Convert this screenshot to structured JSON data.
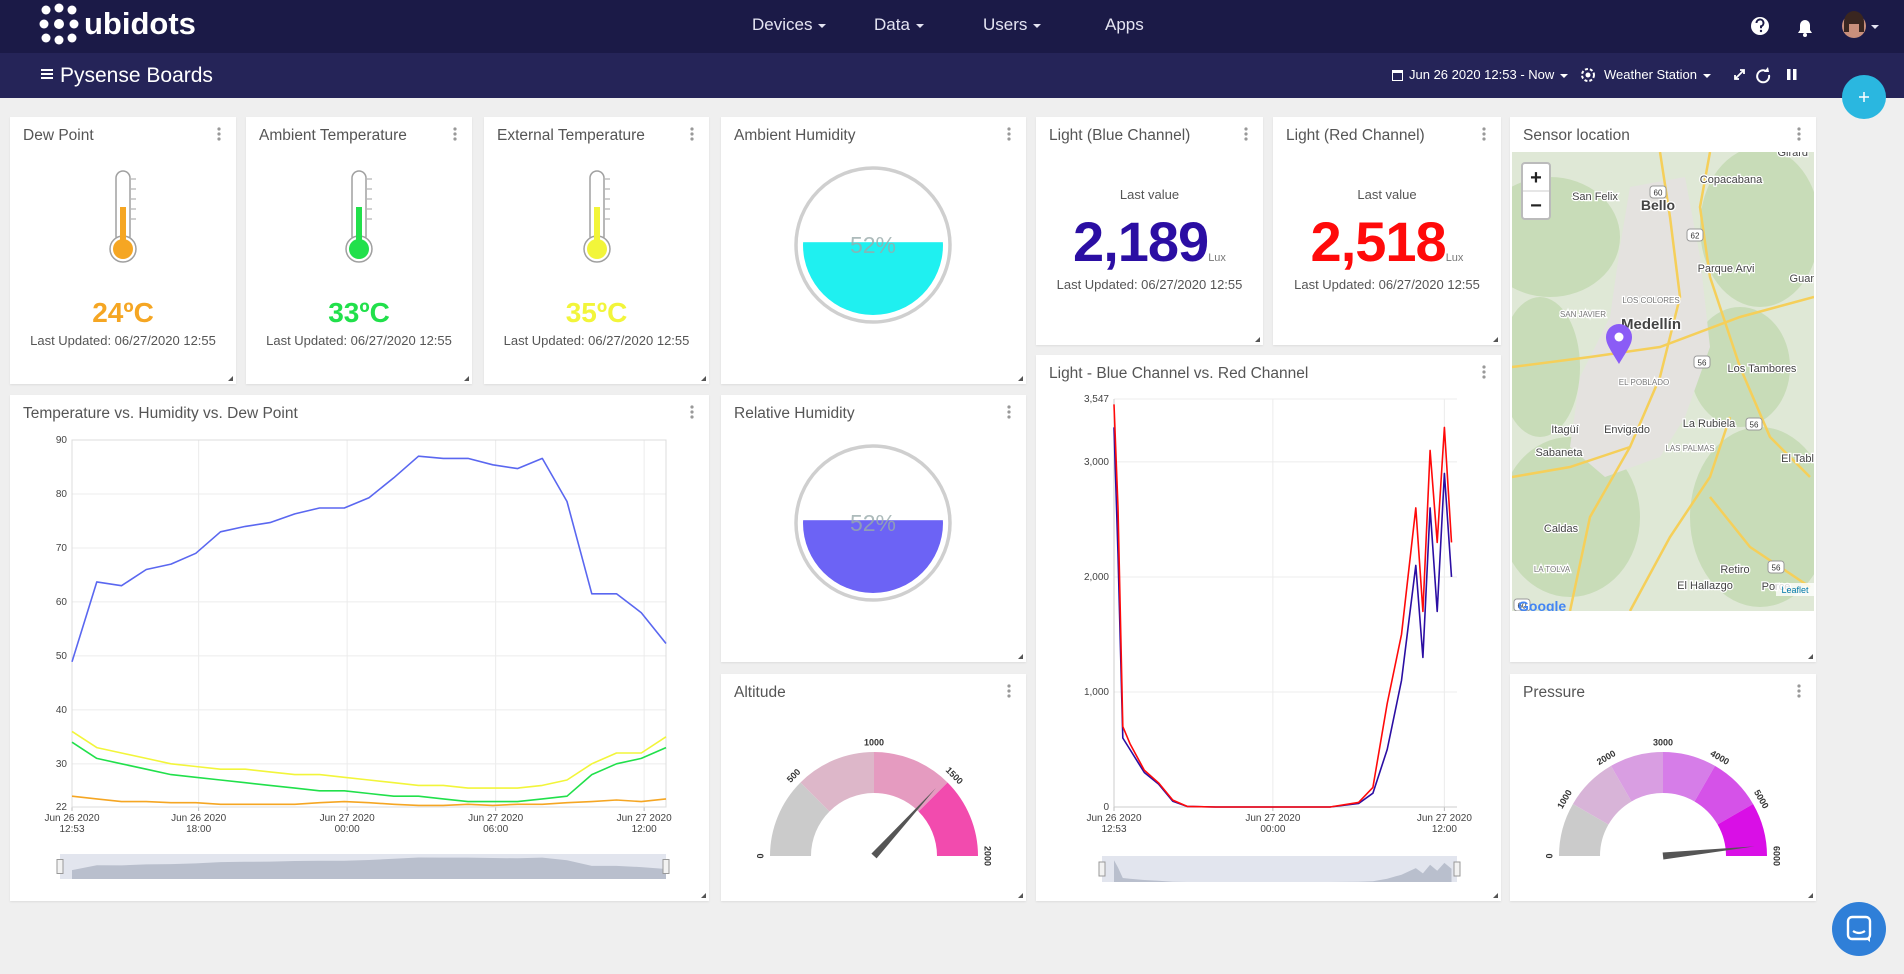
{
  "nav": {
    "brand": "ubidots",
    "menu": [
      "Devices",
      "Data",
      "Users",
      "Apps"
    ]
  },
  "toolbar": {
    "title": "Pysense Boards",
    "date_range": "Jun 26 2020 12:53 - Now",
    "device": "Weather Station"
  },
  "widgets": {
    "dew_point": {
      "title": "Dew Point",
      "value_label": "24ºC",
      "color": "#f5a623",
      "updated": "Last Updated: 06/27/2020 12:55"
    },
    "ambient_temperature": {
      "title": "Ambient Temperature",
      "value_label": "33ºC",
      "color": "#21e04b",
      "updated": "Last Updated: 06/27/2020 12:55"
    },
    "external_temperature": {
      "title": "External Temperature",
      "value_label": "35ºC",
      "color": "#f2f53a",
      "updated": "Last Updated: 06/27/2020 12:55"
    },
    "ambient_humidity": {
      "title": "Ambient Humidity",
      "value": 52,
      "value_label": "52%",
      "color": "#1ff0f0"
    },
    "light_blue": {
      "title": "Light (Blue Channel)",
      "caption": "Last value",
      "value": 2189,
      "value_label": "2,189",
      "unit": "Lux",
      "color": "#2b0ea3",
      "updated": "Last Updated: 06/27/2020 12:55"
    },
    "light_red": {
      "title": "Light (Red Channel)",
      "caption": "Last value",
      "value": 2518,
      "value_label": "2,518",
      "unit": "Lux",
      "color": "#ff0a0a",
      "updated": "Last Updated: 06/27/2020 12:55"
    },
    "sensor_location": {
      "title": "Sensor location",
      "zoom_in": "+",
      "zoom_out": "−",
      "attribution": "Leaflet",
      "logo": "Google",
      "places": [
        "Girard",
        "Copacabana",
        "San Felix",
        "Bello",
        "Parque Arvi",
        "Guar",
        "LOS COLORES",
        "SAN JAVIER",
        "Medellín",
        "EL POBLADO",
        "Los Tambores",
        "Itagüí",
        "Envigado",
        "La Rubiela",
        "Sabaneta",
        "LAS PALMAS",
        "El Tabl",
        "Caldas",
        "LA TOLVA",
        "Retiro",
        "El Hallazgo",
        "Porce"
      ],
      "shields": [
        "60",
        "62",
        "56",
        "56",
        "60",
        "56"
      ]
    },
    "relative_humidity": {
      "title": "Relative Humidity",
      "value": 52,
      "value_label": "52%",
      "color": "#6c63f5"
    }
  },
  "chart_data": [
    {
      "type": "line",
      "title": "Temperature vs. Humidity vs. Dew Point",
      "x": [
        "2020-06-26T12:53",
        "2020-06-26T13:53",
        "2020-06-26T14:53",
        "2020-06-26T15:53",
        "2020-06-26T16:53",
        "2020-06-26T17:53",
        "2020-06-26T18:53",
        "2020-06-26T19:53",
        "2020-06-26T20:53",
        "2020-06-26T21:53",
        "2020-06-26T22:53",
        "2020-06-26T23:53",
        "2020-06-27T00:53",
        "2020-06-27T01:53",
        "2020-06-27T02:53",
        "2020-06-27T03:53",
        "2020-06-27T04:53",
        "2020-06-27T05:53",
        "2020-06-27T06:53",
        "2020-06-27T07:53",
        "2020-06-27T08:53",
        "2020-06-27T09:53",
        "2020-06-27T10:53",
        "2020-06-27T11:53",
        "2020-06-27T12:53"
      ],
      "series": [
        {
          "color": "#5a67f0",
          "values": [
            48.9,
            63.7,
            63,
            66,
            67,
            69,
            73,
            74,
            74.7,
            76.3,
            77.4,
            77.4,
            79.3,
            83,
            87,
            86.6,
            86.6,
            85.4,
            84.7,
            86.6,
            78.6,
            61.5,
            61.5,
            58,
            52.3
          ]
        },
        {
          "color": "#f2f53a",
          "values": [
            36,
            33,
            32,
            31,
            30,
            29.5,
            29,
            29,
            28.5,
            28,
            28,
            27.5,
            27,
            26.5,
            26,
            26,
            25.5,
            25.5,
            25.5,
            26,
            27,
            30,
            32,
            32,
            35
          ]
        },
        {
          "color": "#21e04b",
          "values": [
            34,
            31,
            30,
            29,
            28,
            27.5,
            27,
            26.5,
            26,
            25.5,
            25,
            25,
            24.5,
            24,
            24,
            23.5,
            23,
            23,
            23,
            23.5,
            24,
            28,
            30,
            31,
            33
          ]
        },
        {
          "color": "#f5a623",
          "values": [
            24,
            23.5,
            23,
            23,
            22.8,
            22.8,
            22.5,
            22.5,
            22.5,
            22.5,
            22.8,
            23,
            22.8,
            22.5,
            22.3,
            22.3,
            22.5,
            22.3,
            22.5,
            22.5,
            22.8,
            23,
            23.3,
            23,
            23.5
          ]
        }
      ],
      "xlim": [
        "2020-06-26T12:53",
        "2020-06-27T12:53"
      ],
      "xticks": [
        {
          "value": "2020-06-26T12:53",
          "label": "Jun 26 2020\n12:53"
        },
        {
          "value": "2020-06-26T18:00",
          "label": "Jun 26 2020\n18:00"
        },
        {
          "value": "2020-06-27T00:00",
          "label": "Jun 27 2020\n00:00"
        },
        {
          "value": "2020-06-27T06:00",
          "label": "Jun 27 2020\n06:00"
        },
        {
          "value": "2020-06-27T12:00",
          "label": "Jun 27 2020\n12:00"
        }
      ],
      "ylim": [
        22,
        90
      ],
      "yticks": [
        22,
        30,
        40,
        50,
        60,
        70,
        80,
        90
      ],
      "grid": true
    },
    {
      "type": "line",
      "title": "Light - Blue Channel vs. Red Channel",
      "x": [
        "2020-06-26T12:53",
        "2020-06-26T13:10",
        "2020-06-26T13:30",
        "2020-06-26T14:00",
        "2020-06-26T15:00",
        "2020-06-26T16:00",
        "2020-06-26T17:00",
        "2020-06-26T18:00",
        "2020-06-26T20:00",
        "2020-06-26T22:00",
        "2020-06-27T00:00",
        "2020-06-27T02:00",
        "2020-06-27T04:00",
        "2020-06-27T06:00",
        "2020-06-27T07:00",
        "2020-06-27T08:00",
        "2020-06-27T09:00",
        "2020-06-27T10:00",
        "2020-06-27T10:30",
        "2020-06-27T11:00",
        "2020-06-27T11:30",
        "2020-06-27T12:00",
        "2020-06-27T12:30"
      ],
      "series": [
        {
          "color": "#2b0ea3",
          "values": [
            3300,
            2200,
            600,
            500,
            300,
            200,
            50,
            5,
            0,
            0,
            0,
            0,
            0,
            30,
            120,
            500,
            1100,
            2100,
            1300,
            2600,
            1700,
            2900,
            2000
          ]
        },
        {
          "color": "#ff0a0a",
          "values": [
            3500,
            2600,
            700,
            550,
            320,
            210,
            60,
            5,
            0,
            0,
            0,
            0,
            0,
            40,
            170,
            900,
            1500,
            2600,
            1700,
            3100,
            2300,
            3300,
            2300
          ]
        }
      ],
      "xlim": [
        "2020-06-26T12:53",
        "2020-06-27T12:53"
      ],
      "xticks": [
        {
          "value": "2020-06-26T12:53",
          "label": "Jun 26 2020\n12:53"
        },
        {
          "value": "2020-06-27T00:00",
          "label": "Jun 27 2020\n00:00"
        },
        {
          "value": "2020-06-27T12:00",
          "label": "Jun 27 2020\n12:00"
        }
      ],
      "ylim": [
        0,
        3547
      ],
      "yticks": [
        0,
        {
          "value": 1000,
          "label": "1,000"
        },
        {
          "value": 2000,
          "label": "2,000"
        },
        {
          "value": 3000,
          "label": "3,000"
        },
        {
          "value": 3547,
          "label": "3,547"
        }
      ],
      "grid": true
    },
    {
      "type": "gauge",
      "title": "Altitude",
      "value": 1470,
      "ylim": [
        0,
        2000
      ],
      "yticks": [
        0,
        500,
        1000,
        1500,
        2000
      ],
      "band_colors": [
        "#cbcbcb",
        "#ddb7c9",
        "#e59bc0",
        "#f24bae"
      ]
    },
    {
      "type": "gauge",
      "title": "Pressure",
      "value": 5800,
      "ylim": [
        0,
        6000
      ],
      "yticks": [
        0,
        1000,
        2000,
        3000,
        4000,
        5000,
        6000
      ],
      "band_colors": [
        "#cbcbcb",
        "#d8b4d8",
        "#d99ee2",
        "#d67de8",
        "#d552e8",
        "#d90fe6"
      ]
    }
  ]
}
